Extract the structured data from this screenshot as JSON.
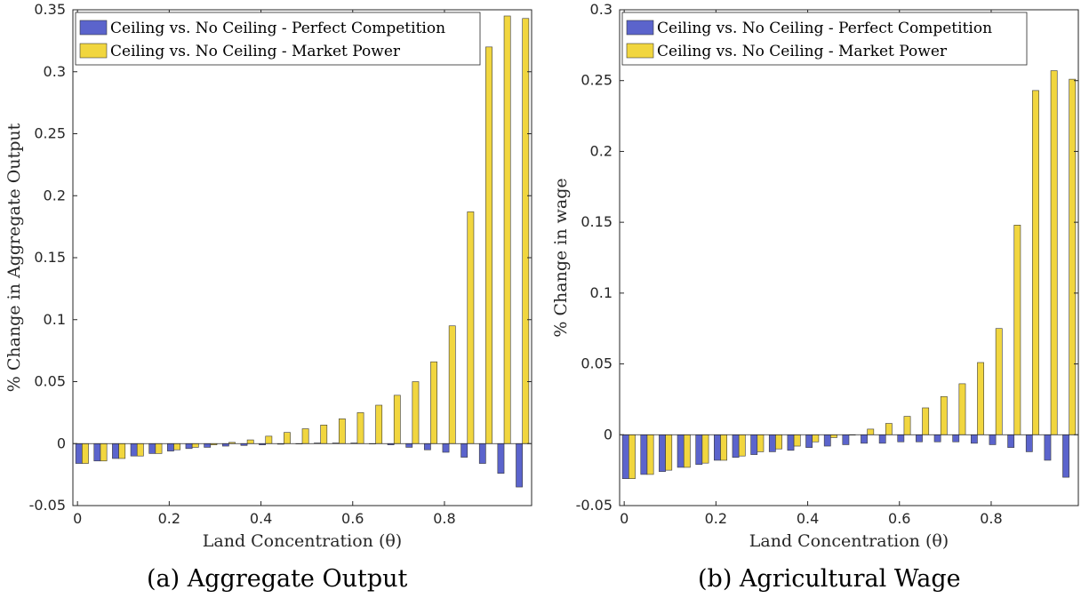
{
  "captions": {
    "a": "(a) Aggregate Output",
    "b": "(b) Agricultural Wage"
  },
  "colors": {
    "perfect_competition": "#5b64cc",
    "market_power": "#f1d63f",
    "bar_edge": "#3a3a3a"
  },
  "chart_data": [
    {
      "type": "bar",
      "xlabel": "Land Concentration (θ)",
      "ylabel": "% Change in Aggregate Output",
      "ylim": [
        -0.05,
        0.35
      ],
      "yticks": [
        -0.05,
        0,
        0.05,
        0.1,
        0.15,
        0.2,
        0.25,
        0.3,
        0.35
      ],
      "ytick_labels": [
        "-0.05",
        "0",
        "0.05",
        "0.1",
        "0.15",
        "0.2",
        "0.25",
        "0.3",
        "0.35"
      ],
      "xlim": [
        -0.01,
        0.99
      ],
      "xticks": [
        0,
        0.2,
        0.4,
        0.6,
        0.8
      ],
      "xtick_labels": [
        "0",
        "0.2",
        "0.4",
        "0.6",
        "0.8"
      ],
      "legend_position": "top-left",
      "grid": false,
      "x": [
        0.01,
        0.05,
        0.09,
        0.13,
        0.17,
        0.21,
        0.25,
        0.29,
        0.33,
        0.37,
        0.41,
        0.45,
        0.49,
        0.53,
        0.57,
        0.61,
        0.65,
        0.69,
        0.73,
        0.77,
        0.81,
        0.85,
        0.89,
        0.93,
        0.97
      ],
      "series": [
        {
          "name": "Ceiling vs. No Ceiling - Perfect Competition",
          "color_key": "perfect_competition",
          "values": [
            -0.016,
            -0.014,
            -0.012,
            -0.01,
            -0.008,
            -0.006,
            -0.004,
            -0.003,
            -0.002,
            -0.0015,
            -0.001,
            -0.0005,
            0,
            0.0005,
            0.0005,
            0.0005,
            0,
            -0.001,
            -0.003,
            -0.005,
            -0.007,
            -0.011,
            -0.016,
            -0.024,
            -0.035
          ]
        },
        {
          "name": "Ceiling vs. No Ceiling - Market Power",
          "color_key": "market_power",
          "values": [
            -0.016,
            -0.014,
            -0.012,
            -0.01,
            -0.008,
            -0.005,
            -0.003,
            -0.001,
            0.001,
            0.003,
            0.006,
            0.009,
            0.012,
            0.015,
            0.02,
            0.025,
            0.031,
            0.039,
            0.05,
            0.066,
            0.095,
            0.187,
            0.32,
            0.345,
            0.343
          ]
        }
      ]
    },
    {
      "type": "bar",
      "xlabel": "Land Concentration (θ)",
      "ylabel": "% Change in wage",
      "ylim": [
        -0.05,
        0.3
      ],
      "yticks": [
        -0.05,
        0,
        0.05,
        0.1,
        0.15,
        0.2,
        0.25,
        0.3
      ],
      "ytick_labels": [
        "-0.05",
        "0",
        "0.05",
        "0.1",
        "0.15",
        "0.2",
        "0.25",
        "0.3"
      ],
      "xlim": [
        -0.01,
        0.99
      ],
      "xticks": [
        0,
        0.2,
        0.4,
        0.6,
        0.8
      ],
      "xtick_labels": [
        "0",
        "0.2",
        "0.4",
        "0.6",
        "0.8"
      ],
      "legend_position": "top-left",
      "grid": false,
      "x": [
        0.01,
        0.05,
        0.09,
        0.13,
        0.17,
        0.21,
        0.25,
        0.29,
        0.33,
        0.37,
        0.41,
        0.45,
        0.49,
        0.53,
        0.57,
        0.61,
        0.65,
        0.69,
        0.73,
        0.77,
        0.81,
        0.85,
        0.89,
        0.93,
        0.97
      ],
      "series": [
        {
          "name": "Ceiling vs. No Ceiling - Perfect Competition",
          "color_key": "perfect_competition",
          "values": [
            -0.031,
            -0.028,
            -0.026,
            -0.023,
            -0.021,
            -0.018,
            -0.016,
            -0.014,
            -0.012,
            -0.011,
            -0.009,
            -0.008,
            -0.007,
            -0.006,
            -0.006,
            -0.005,
            -0.005,
            -0.005,
            -0.005,
            -0.006,
            -0.007,
            -0.009,
            -0.012,
            -0.018,
            -0.03
          ]
        },
        {
          "name": "Ceiling vs. No Ceiling - Market Power",
          "color_key": "market_power",
          "values": [
            -0.031,
            -0.028,
            -0.025,
            -0.023,
            -0.02,
            -0.018,
            -0.015,
            -0.012,
            -0.01,
            -0.008,
            -0.005,
            -0.002,
            0.0,
            0.004,
            0.008,
            0.013,
            0.019,
            0.027,
            0.036,
            0.051,
            0.075,
            0.148,
            0.243,
            0.257,
            0.251
          ]
        }
      ]
    }
  ]
}
